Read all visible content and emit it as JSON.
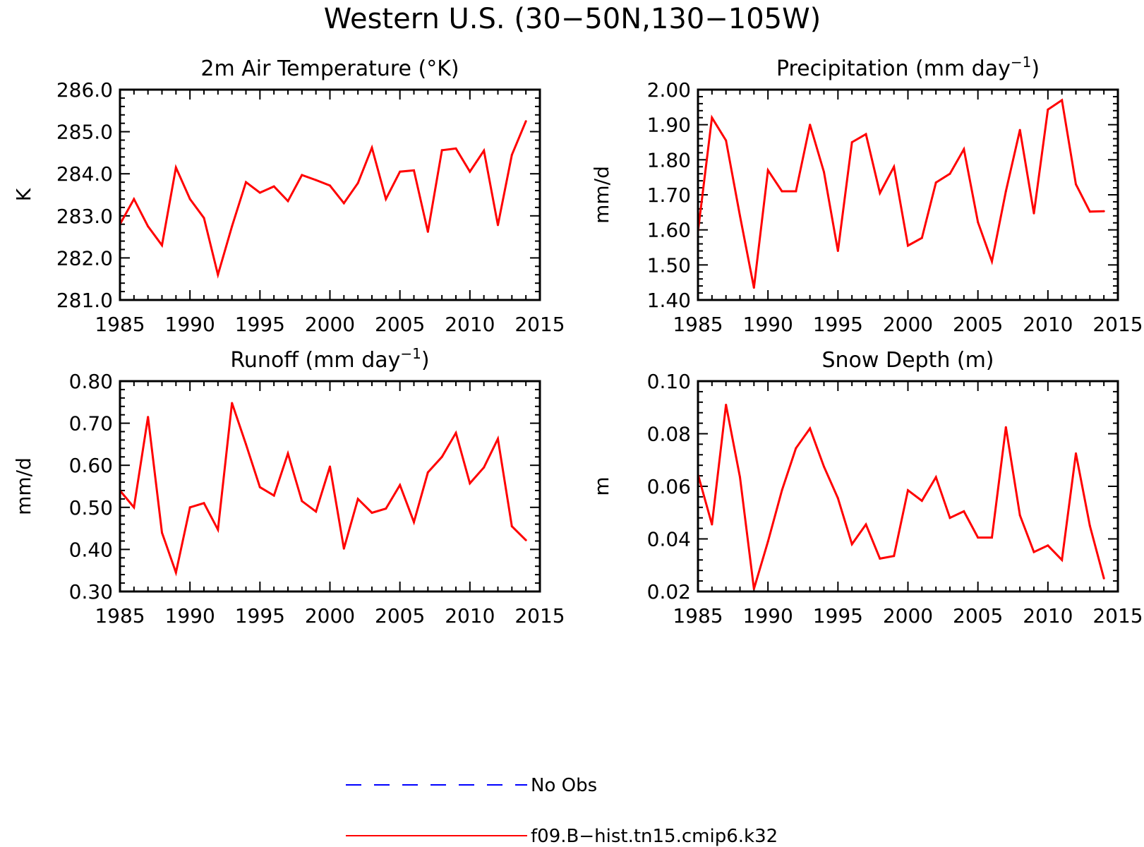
{
  "figure": {
    "title": "Western U.S. (30−50N,130−105W)"
  },
  "colors": {
    "model": "#ff0000",
    "obs": "#0000ff",
    "axis": "#000000"
  },
  "legend": {
    "placement": "bottom-center",
    "items": [
      {
        "label": "No Obs",
        "color": "#0000ff",
        "style": "dashed"
      },
      {
        "label": "f09.B−hist.tn15.cmip6.k32",
        "color": "#ff0000",
        "style": "solid"
      }
    ]
  },
  "chart_data": [
    {
      "type": "line",
      "title": "2m Air Temperature (°K)",
      "xlabel": "",
      "ylabel": "K",
      "xlim": [
        1985,
        2015
      ],
      "ylim": [
        281.0,
        286.0
      ],
      "xticks": [
        1985,
        1990,
        1995,
        2000,
        2005,
        2010,
        2015
      ],
      "yticks": [
        "281.0",
        "282.0",
        "283.0",
        "284.0",
        "285.0",
        "286.0"
      ],
      "ytick_values": [
        281,
        282,
        283,
        284,
        285,
        286
      ],
      "x": [
        1985,
        1986,
        1987,
        1988,
        1989,
        1990,
        1991,
        1992,
        1993,
        1994,
        1995,
        1996,
        1997,
        1998,
        1999,
        2000,
        2001,
        2002,
        2003,
        2004,
        2005,
        2006,
        2007,
        2008,
        2009,
        2010,
        2011,
        2012,
        2013,
        2014
      ],
      "series": [
        {
          "name": "f09.B−hist.tn15.cmip6.k32",
          "values": [
            282.8,
            283.4,
            282.75,
            282.3,
            284.15,
            283.4,
            282.95,
            281.6,
            282.75,
            283.8,
            283.55,
            283.7,
            283.35,
            283.97,
            283.85,
            283.72,
            283.3,
            283.78,
            284.62,
            283.4,
            284.05,
            284.08,
            282.62,
            284.56,
            284.6,
            284.05,
            284.55,
            282.78,
            284.45,
            285.25
          ]
        }
      ]
    },
    {
      "type": "line",
      "title": "Precipitation (mm day",
      "title_sup": "−1",
      "title_end": ")",
      "xlabel": "",
      "ylabel": "mm/d",
      "xlim": [
        1985,
        2015
      ],
      "ylim": [
        1.4,
        2.0
      ],
      "xticks": [
        1985,
        1990,
        1995,
        2000,
        2005,
        2010,
        2015
      ],
      "yticks": [
        "1.40",
        "1.50",
        "1.60",
        "1.70",
        "1.80",
        "1.90",
        "2.00"
      ],
      "ytick_values": [
        1.4,
        1.5,
        1.6,
        1.7,
        1.8,
        1.9,
        2.0
      ],
      "x": [
        1985,
        1986,
        1987,
        1988,
        1989,
        1990,
        1991,
        1992,
        1993,
        1994,
        1995,
        1996,
        1997,
        1998,
        1999,
        2000,
        2001,
        2002,
        2003,
        2004,
        2005,
        2006,
        2007,
        2008,
        2009,
        2010,
        2011,
        2012,
        2013,
        2014
      ],
      "series": [
        {
          "name": "f09.B−hist.tn15.cmip6.k32",
          "values": [
            1.595,
            1.92,
            1.855,
            1.64,
            1.435,
            1.77,
            1.71,
            1.71,
            1.9,
            1.765,
            1.54,
            1.85,
            1.873,
            1.705,
            1.78,
            1.555,
            1.577,
            1.735,
            1.76,
            1.83,
            1.622,
            1.51,
            1.71,
            1.885,
            1.647,
            1.943,
            1.97,
            1.73,
            1.652,
            1.653
          ]
        }
      ]
    },
    {
      "type": "line",
      "title": "Runoff (mm day",
      "title_sup": "−1",
      "title_end": ")",
      "xlabel": "",
      "ylabel": "mm/d",
      "xlim": [
        1985,
        2015
      ],
      "ylim": [
        0.3,
        0.8
      ],
      "xticks": [
        1985,
        1990,
        1995,
        2000,
        2005,
        2010,
        2015
      ],
      "yticks": [
        "0.30",
        "0.40",
        "0.50",
        "0.60",
        "0.70",
        "0.80"
      ],
      "ytick_values": [
        0.3,
        0.4,
        0.5,
        0.6,
        0.7,
        0.8
      ],
      "x": [
        1985,
        1986,
        1987,
        1988,
        1989,
        1990,
        1991,
        1992,
        1993,
        1994,
        1995,
        1996,
        1997,
        1998,
        1999,
        2000,
        2001,
        2002,
        2003,
        2004,
        2005,
        2006,
        2007,
        2008,
        2009,
        2010,
        2011,
        2012,
        2013,
        2014
      ],
      "series": [
        {
          "name": "f09.B−hist.tn15.cmip6.k32",
          "values": [
            0.54,
            0.5,
            0.715,
            0.44,
            0.345,
            0.5,
            0.51,
            0.447,
            0.748,
            0.65,
            0.548,
            0.528,
            0.628,
            0.515,
            0.49,
            0.597,
            0.402,
            0.52,
            0.487,
            0.497,
            0.553,
            0.465,
            0.583,
            0.62,
            0.677,
            0.557,
            0.595,
            0.663,
            0.455,
            0.422
          ]
        }
      ]
    },
    {
      "type": "line",
      "title": "Snow Depth (m)",
      "xlabel": "",
      "ylabel": "m",
      "xlim": [
        1985,
        2015
      ],
      "ylim": [
        0.02,
        0.1
      ],
      "xticks": [
        1985,
        1990,
        1995,
        2000,
        2005,
        2010,
        2015
      ],
      "yticks": [
        "0.02",
        "0.04",
        "0.06",
        "0.08",
        "0.10"
      ],
      "ytick_values": [
        0.02,
        0.04,
        0.06,
        0.08,
        0.1
      ],
      "x": [
        1985,
        1986,
        1987,
        1988,
        1989,
        1990,
        1991,
        1992,
        1993,
        1994,
        1995,
        1996,
        1997,
        1998,
        1999,
        2000,
        2001,
        2002,
        2003,
        2004,
        2005,
        2006,
        2007,
        2008,
        2009,
        2010,
        2011,
        2012,
        2013,
        2014
      ],
      "series": [
        {
          "name": "f09.B−hist.tn15.cmip6.k32",
          "values": [
            0.0645,
            0.0455,
            0.091,
            0.0635,
            0.021,
            0.039,
            0.0585,
            0.0745,
            0.082,
            0.0675,
            0.0555,
            0.038,
            0.0455,
            0.0325,
            0.0335,
            0.0585,
            0.0545,
            0.0635,
            0.048,
            0.0505,
            0.0405,
            0.0405,
            0.0825,
            0.049,
            0.035,
            0.0375,
            0.032,
            0.0725,
            0.045,
            0.025
          ]
        }
      ]
    }
  ]
}
